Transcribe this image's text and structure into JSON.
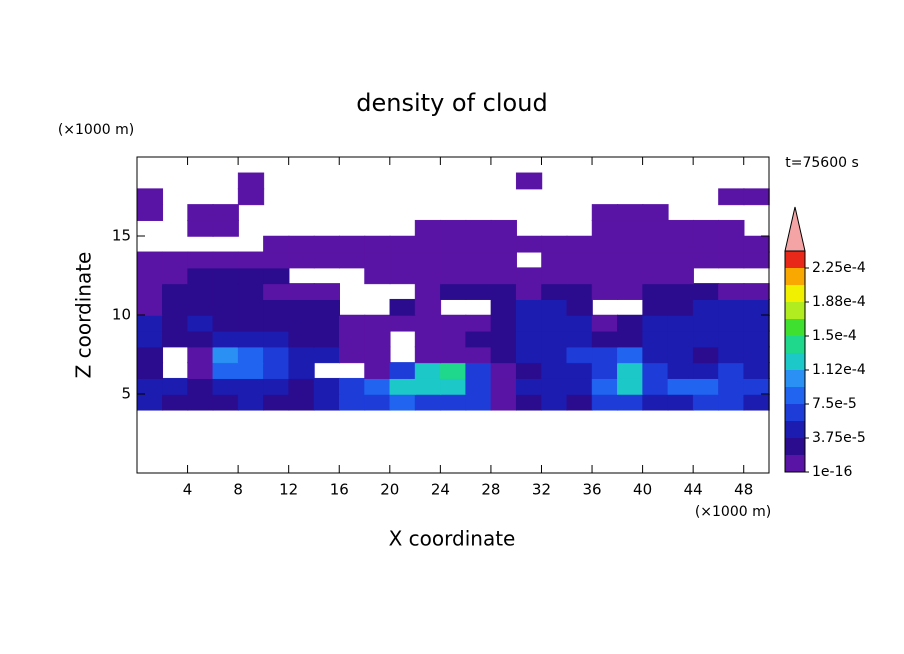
{
  "chart_data": {
    "type": "contour",
    "title": "density of cloud",
    "xlabel": "X coordinate",
    "ylabel": "Z coordinate",
    "xunit": "(×1000 m)",
    "yunit": "(×1000 m)",
    "annotation": "t=75600 s",
    "xlim": [
      0,
      50
    ],
    "ylim": [
      0,
      20
    ],
    "xticks": [
      4,
      8,
      12,
      16,
      20,
      24,
      28,
      32,
      36,
      40,
      44,
      48
    ],
    "yticks": [
      5,
      10,
      15
    ],
    "x": [
      1,
      3,
      5,
      7,
      9,
      11,
      13,
      15,
      17,
      19,
      21,
      23,
      25,
      27,
      29,
      31,
      33,
      35,
      37,
      39,
      41,
      43,
      45,
      47,
      49
    ],
    "y": [
      4.5,
      5.5,
      6.5,
      7.5,
      8.5,
      9.5,
      10.5,
      11.5,
      12.5,
      13.5,
      14.5,
      15.5,
      16.5,
      17.5,
      18.5
    ],
    "values": [
      [
        4.5e-05,
        2.5e-05,
        2.5e-05,
        2.5e-05,
        4.5e-05,
        2.5e-05,
        2.5e-05,
        4.5e-05,
        6.5e-05,
        6.5e-05,
        8.5e-05,
        6.5e-05,
        6.5e-05,
        6.5e-05,
        5e-06,
        2.5e-05,
        4.5e-05,
        2.5e-05,
        6.5e-05,
        6.5e-05,
        4.5e-05,
        4.5e-05,
        6.5e-05,
        6.5e-05,
        4.5e-05
      ],
      [
        4.5e-05,
        4.5e-05,
        2.5e-05,
        4.5e-05,
        4.5e-05,
        4.5e-05,
        2.5e-05,
        4.5e-05,
        6.5e-05,
        8.5e-05,
        0.00012,
        0.00012,
        0.00012,
        6.5e-05,
        5e-06,
        4.5e-05,
        4.5e-05,
        4.5e-05,
        8.5e-05,
        0.00012,
        6.5e-05,
        8.5e-05,
        8.5e-05,
        6.5e-05,
        6.5e-05
      ],
      [
        2.5e-05,
        null,
        5e-06,
        8.5e-05,
        8.5e-05,
        6.5e-05,
        4.5e-05,
        null,
        null,
        5e-06,
        6.5e-05,
        0.00012,
        0.00014,
        6.5e-05,
        5e-06,
        2.5e-05,
        4.5e-05,
        4.5e-05,
        6.5e-05,
        0.00012,
        6.5e-05,
        4.5e-05,
        4.5e-05,
        6.5e-05,
        4.5e-05
      ],
      [
        2.5e-05,
        null,
        5e-06,
        0.0001,
        8.5e-05,
        6.5e-05,
        4.5e-05,
        4.5e-05,
        5e-06,
        5e-06,
        null,
        5e-06,
        5e-06,
        5e-06,
        2.5e-05,
        4.5e-05,
        4.5e-05,
        6.5e-05,
        6.5e-05,
        8.5e-05,
        4.5e-05,
        4.5e-05,
        2.5e-05,
        4.5e-05,
        4.5e-05
      ],
      [
        4.5e-05,
        2.5e-05,
        2.5e-05,
        4.5e-05,
        4.5e-05,
        4.5e-05,
        2.5e-05,
        2.5e-05,
        5e-06,
        5e-06,
        null,
        5e-06,
        5e-06,
        2.5e-05,
        2.5e-05,
        4.5e-05,
        4.5e-05,
        4.5e-05,
        2.5e-05,
        2.5e-05,
        4.5e-05,
        4.5e-05,
        4.5e-05,
        4.5e-05,
        4.5e-05
      ],
      [
        4.5e-05,
        2.5e-05,
        4.5e-05,
        2.5e-05,
        2.5e-05,
        2.5e-05,
        2.5e-05,
        2.5e-05,
        5e-06,
        5e-06,
        5e-06,
        5e-06,
        5e-06,
        5e-06,
        2.5e-05,
        4.5e-05,
        4.5e-05,
        4.5e-05,
        5e-06,
        2.5e-05,
        4.5e-05,
        4.5e-05,
        4.5e-05,
        4.5e-05,
        4.5e-05
      ],
      [
        5e-06,
        2.5e-05,
        2.5e-05,
        2.5e-05,
        2.5e-05,
        2.5e-05,
        2.5e-05,
        2.5e-05,
        null,
        null,
        2.5e-05,
        5e-06,
        null,
        null,
        2.5e-05,
        4.5e-05,
        4.5e-05,
        2.5e-05,
        null,
        null,
        2.5e-05,
        2.5e-05,
        4.5e-05,
        4.5e-05,
        4.5e-05
      ],
      [
        5e-06,
        2.5e-05,
        2.5e-05,
        2.5e-05,
        2.5e-05,
        5e-06,
        5e-06,
        5e-06,
        null,
        null,
        null,
        5e-06,
        2.5e-05,
        2.5e-05,
        2.5e-05,
        5e-06,
        2.5e-05,
        2.5e-05,
        5e-06,
        5e-06,
        2.5e-05,
        2.5e-05,
        2.5e-05,
        5e-06,
        5e-06
      ],
      [
        5e-06,
        5e-06,
        2.5e-05,
        2.5e-05,
        2.5e-05,
        2.5e-05,
        null,
        null,
        null,
        5e-06,
        5e-06,
        5e-06,
        5e-06,
        5e-06,
        5e-06,
        5e-06,
        5e-06,
        5e-06,
        5e-06,
        5e-06,
        5e-06,
        5e-06,
        null,
        null,
        null
      ],
      [
        5e-06,
        5e-06,
        5e-06,
        5e-06,
        5e-06,
        5e-06,
        5e-06,
        5e-06,
        5e-06,
        5e-06,
        5e-06,
        5e-06,
        5e-06,
        5e-06,
        5e-06,
        null,
        5e-06,
        5e-06,
        5e-06,
        5e-06,
        5e-06,
        5e-06,
        5e-06,
        5e-06,
        5e-06
      ],
      [
        null,
        null,
        null,
        null,
        null,
        5e-06,
        5e-06,
        5e-06,
        5e-06,
        5e-06,
        5e-06,
        5e-06,
        5e-06,
        5e-06,
        5e-06,
        5e-06,
        5e-06,
        5e-06,
        5e-06,
        5e-06,
        5e-06,
        5e-06,
        5e-06,
        5e-06,
        5e-06
      ],
      [
        null,
        null,
        5e-06,
        5e-06,
        null,
        null,
        null,
        null,
        null,
        null,
        null,
        5e-06,
        5e-06,
        5e-06,
        5e-06,
        null,
        null,
        null,
        5e-06,
        5e-06,
        5e-06,
        5e-06,
        5e-06,
        5e-06,
        null
      ],
      [
        5e-06,
        null,
        5e-06,
        5e-06,
        null,
        null,
        null,
        null,
        null,
        null,
        null,
        null,
        null,
        null,
        null,
        null,
        null,
        null,
        5e-06,
        5e-06,
        5e-06,
        null,
        null,
        null,
        null
      ],
      [
        5e-06,
        null,
        null,
        null,
        5e-06,
        null,
        null,
        null,
        null,
        null,
        null,
        null,
        null,
        null,
        null,
        null,
        null,
        null,
        null,
        null,
        null,
        null,
        null,
        5e-06,
        5e-06
      ],
      [
        null,
        null,
        null,
        null,
        5e-06,
        null,
        null,
        null,
        null,
        null,
        null,
        null,
        null,
        null,
        null,
        5e-06,
        null,
        null,
        null,
        null,
        null,
        null,
        null,
        null,
        null
      ]
    ],
    "colorbar": {
      "levels": [
        1e-16,
        1.875e-05,
        3.75e-05,
        5.625e-05,
        7.5e-05,
        9.375e-05,
        0.0001125,
        0.00013125,
        0.00015,
        0.00016875,
        0.0001875,
        0.00020625,
        0.000225,
        0.00024375
      ],
      "colors": [
        "#5a14a5",
        "#2c0c8e",
        "#1c1cb0",
        "#1e3cd8",
        "#2064f0",
        "#2a90f4",
        "#1cc8c8",
        "#20d88c",
        "#40e030",
        "#b0ec20",
        "#f0f000",
        "#f8a800",
        "#e82818"
      ],
      "extend_color": "#f4a4a4",
      "ticks": [
        1e-16,
        {
          "value": 3.75e-05,
          "label": "3.75e-5"
        },
        {
          "value": 7.5e-05,
          "label": "7.5e-5"
        },
        {
          "value": 0.0001125,
          "label": "1.12e-4"
        },
        {
          "value": 0.00015,
          "label": "1.5e-4"
        },
        {
          "value": 0.0001875,
          "label": "1.88e-4"
        },
        {
          "value": 0.000225,
          "label": "2.25e-4"
        }
      ]
    }
  }
}
